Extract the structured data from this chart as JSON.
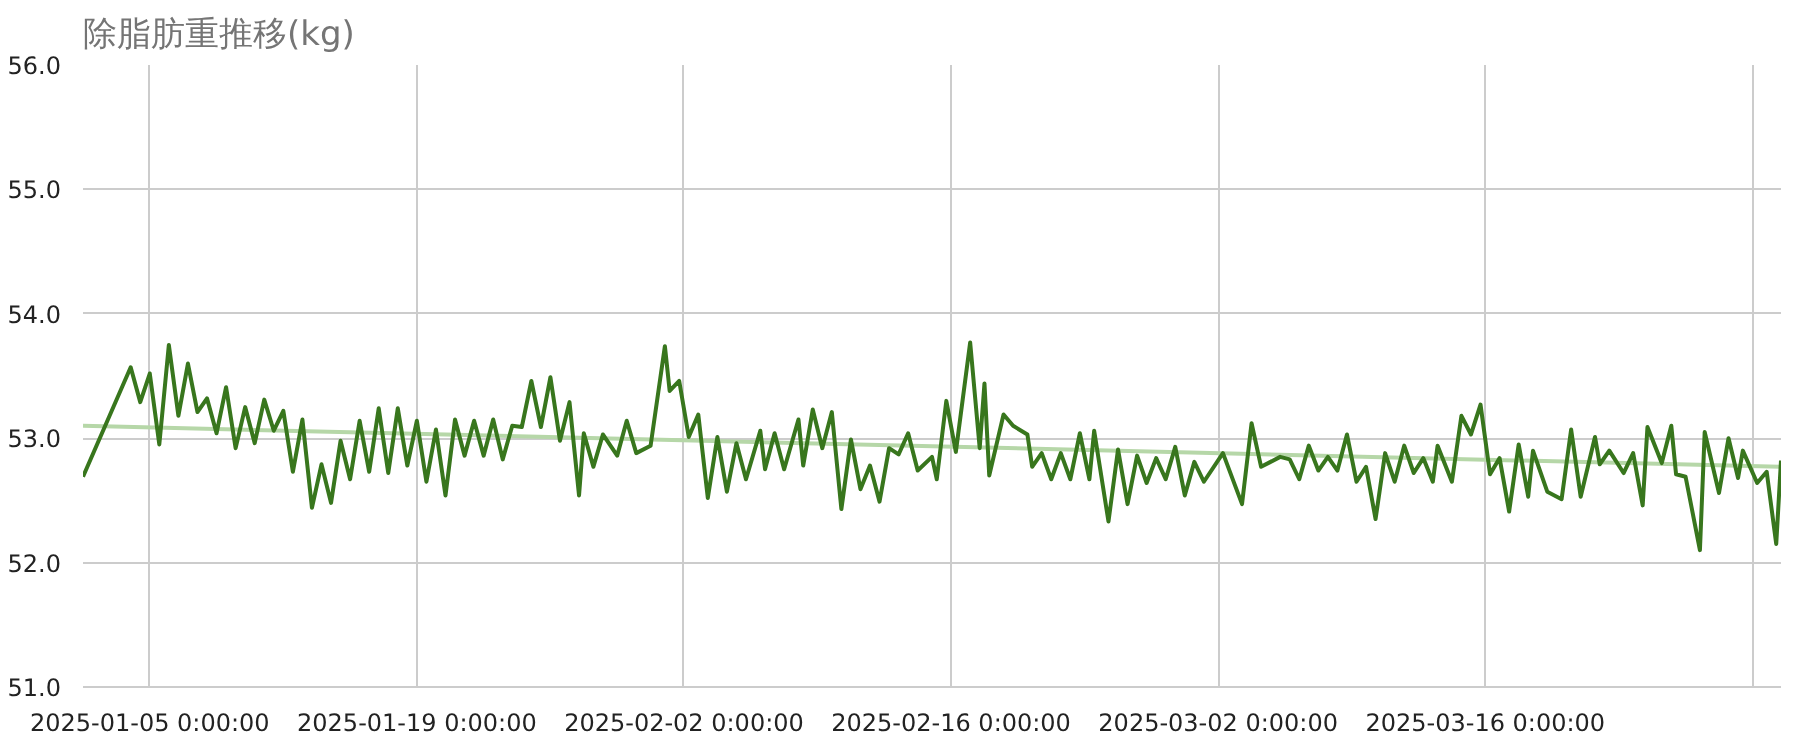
{
  "chart_data": {
    "type": "line",
    "title": "除脂肪重推移(kg)",
    "xlim": [
      "2025-01-01T12:00",
      "2025-03-31T12:00"
    ],
    "xticks": [
      {
        "value": "2025-01-05",
        "label": "2025-01-05 0:00:00"
      },
      {
        "value": "2025-01-19",
        "label": "2025-01-19 0:00:00"
      },
      {
        "value": "2025-02-02",
        "label": "2025-02-02 0:00:00"
      },
      {
        "value": "2025-02-16",
        "label": "2025-02-16 0:00:00"
      },
      {
        "value": "2025-03-02",
        "label": "2025-03-02 0:00:00"
      },
      {
        "value": "2025-03-16",
        "label": "2025-03-16 0:00:00"
      },
      {
        "value": "2025-03-30",
        "label": null
      }
    ],
    "ylim": [
      51,
      56
    ],
    "yticks": [
      {
        "value": 51,
        "label": "51.0"
      },
      {
        "value": 52,
        "label": "52.0"
      },
      {
        "value": 53,
        "label": "53.0"
      },
      {
        "value": 54,
        "label": "54.0"
      },
      {
        "value": 55,
        "label": "55.0"
      },
      {
        "value": 56,
        "label": "56.0"
      }
    ],
    "grid": true,
    "series": [
      {
        "color": "#38761d",
        "x": [
          "2025-01-01T12:00",
          "2025-01-04T00:00",
          "2025-01-04T12:00",
          "2025-01-05T00:00",
          "2025-01-05T12:00",
          "2025-01-06T00:00",
          "2025-01-06T12:00",
          "2025-01-07T00:00",
          "2025-01-07T12:00",
          "2025-01-08T00:00",
          "2025-01-08T12:00",
          "2025-01-09T00:00",
          "2025-01-09T12:00",
          "2025-01-10T00:00",
          "2025-01-10T12:00",
          "2025-01-11T00:00",
          "2025-01-11T12:00",
          "2025-01-12T00:00",
          "2025-01-12T12:00",
          "2025-01-13T00:00",
          "2025-01-13T12:00",
          "2025-01-14T00:00",
          "2025-01-14T12:00",
          "2025-01-15T00:00",
          "2025-01-15T12:00",
          "2025-01-16T00:00",
          "2025-01-16T12:00",
          "2025-01-17T00:00",
          "2025-01-17T12:00",
          "2025-01-18T00:00",
          "2025-01-18T12:00",
          "2025-01-19T00:00",
          "2025-01-19T12:00",
          "2025-01-20T00:00",
          "2025-01-20T12:00",
          "2025-01-21T00:00",
          "2025-01-21T12:00",
          "2025-01-22T00:00",
          "2025-01-22T12:00",
          "2025-01-23T00:00",
          "2025-01-23T12:00",
          "2025-01-24T00:00",
          "2025-01-24T12:00",
          "2025-01-25T00:00",
          "2025-01-25T12:00",
          "2025-01-26T00:00",
          "2025-01-26T12:00",
          "2025-01-27T00:00",
          "2025-01-27T12:00",
          "2025-01-27T18:00",
          "2025-01-28T06:00",
          "2025-01-28T18:00",
          "2025-01-29T12:00",
          "2025-01-30T00:00",
          "2025-01-30T12:00",
          "2025-01-31T06:00",
          "2025-02-01T00:00",
          "2025-02-01T06:00",
          "2025-02-01T18:00",
          "2025-02-02T06:00",
          "2025-02-02T18:00",
          "2025-02-03T06:00",
          "2025-02-03T18:00",
          "2025-02-04T06:00",
          "2025-02-04T18:00",
          "2025-02-05T06:00",
          "2025-02-06T00:00",
          "2025-02-06T06:00",
          "2025-02-06T18:00",
          "2025-02-07T06:00",
          "2025-02-08T00:00",
          "2025-02-08T06:00",
          "2025-02-08T18:00",
          "2025-02-09T06:00",
          "2025-02-09T18:00",
          "2025-02-10T06:00",
          "2025-02-10T18:00",
          "2025-02-11T06:00",
          "2025-02-11T18:00",
          "2025-02-12T06:00",
          "2025-02-12T18:00",
          "2025-02-13T06:00",
          "2025-02-13T18:00",
          "2025-02-14T06:00",
          "2025-02-15T00:00",
          "2025-02-15T06:00",
          "2025-02-15T18:00",
          "2025-02-16T06:00",
          "2025-02-17T00:00",
          "2025-02-17T12:00",
          "2025-02-17T18:00",
          "2025-02-18T00:00",
          "2025-02-18T18:00",
          "2025-02-19T06:00",
          "2025-02-20T00:00",
          "2025-02-20T06:00",
          "2025-02-20T18:00",
          "2025-02-21T06:00",
          "2025-02-21T18:00",
          "2025-02-22T06:00",
          "2025-02-22T18:00",
          "2025-02-23T06:00",
          "2025-02-23T12:00",
          "2025-02-24T06:00",
          "2025-02-24T18:00",
          "2025-02-25T06:00",
          "2025-02-25T18:00",
          "2025-02-26T06:00",
          "2025-02-26T18:00",
          "2025-02-27T06:00",
          "2025-02-27T18:00",
          "2025-02-28T06:00",
          "2025-02-28T18:00",
          "2025-03-01T06:00",
          "2025-03-02T06:00",
          "2025-03-03T06:00",
          "2025-03-03T18:00",
          "2025-03-04T06:00",
          "2025-03-05T06:00",
          "2025-03-05T18:00",
          "2025-03-06T06:00",
          "2025-03-06T18:00",
          "2025-03-07T06:00",
          "2025-03-07T18:00",
          "2025-03-08T06:00",
          "2025-03-08T18:00",
          "2025-03-09T06:00",
          "2025-03-09T18:00",
          "2025-03-10T06:00",
          "2025-03-10T18:00",
          "2025-03-11T06:00",
          "2025-03-11T18:00",
          "2025-03-12T06:00",
          "2025-03-12T18:00",
          "2025-03-13T06:00",
          "2025-03-13T12:00",
          "2025-03-14T06:00",
          "2025-03-14T18:00",
          "2025-03-15T06:00",
          "2025-03-15T18:00",
          "2025-03-16T06:00",
          "2025-03-16T18:00",
          "2025-03-17T06:00",
          "2025-03-17T18:00",
          "2025-03-18T06:00",
          "2025-03-18T12:00",
          "2025-03-19T06:00",
          "2025-03-20T00:00",
          "2025-03-20T12:00",
          "2025-03-21T00:00",
          "2025-03-21T18:00",
          "2025-03-22T00:00",
          "2025-03-22T12:00",
          "2025-03-23T06:00",
          "2025-03-23T18:00",
          "2025-03-24T06:00",
          "2025-03-24T12:00",
          "2025-03-25T06:00",
          "2025-03-25T18:00",
          "2025-03-26T00:00",
          "2025-03-26T12:00",
          "2025-03-27T06:00",
          "2025-03-27T12:00",
          "2025-03-28T06:00",
          "2025-03-28T18:00",
          "2025-03-29T06:00",
          "2025-03-29T12:00",
          "2025-03-30T06:00",
          "2025-03-30T18:00",
          "2025-03-31T06:00",
          "2025-03-31T12:00"
        ],
        "values": [
          52.69,
          53.57,
          53.29,
          53.52,
          52.95,
          53.75,
          53.18,
          53.6,
          53.21,
          53.32,
          53.04,
          53.41,
          52.92,
          53.25,
          52.96,
          53.31,
          53.06,
          53.22,
          52.73,
          53.15,
          52.44,
          52.79,
          52.48,
          52.98,
          52.67,
          53.14,
          52.73,
          53.24,
          52.72,
          53.24,
          52.78,
          53.14,
          52.65,
          53.07,
          52.54,
          53.15,
          52.86,
          53.14,
          52.86,
          53.15,
          52.83,
          53.1,
          53.09,
          53.46,
          53.09,
          53.49,
          52.98,
          53.29,
          52.54,
          53.04,
          52.77,
          53.03,
          52.86,
          53.14,
          52.88,
          52.94,
          53.74,
          53.38,
          53.46,
          53.01,
          53.19,
          52.52,
          53.01,
          52.57,
          52.96,
          52.67,
          53.06,
          52.75,
          53.04,
          52.75,
          53.15,
          52.78,
          53.23,
          52.92,
          53.21,
          52.43,
          52.99,
          52.59,
          52.78,
          52.49,
          52.92,
          52.87,
          53.04,
          52.74,
          52.85,
          52.67,
          53.3,
          52.89,
          53.77,
          52.92,
          53.44,
          52.7,
          53.19,
          53.1,
          53.03,
          52.77,
          52.88,
          52.67,
          52.88,
          52.67,
          53.04,
          52.67,
          53.06,
          52.33,
          52.91,
          52.47,
          52.86,
          52.64,
          52.84,
          52.67,
          52.93,
          52.54,
          52.81,
          52.65,
          52.88,
          52.47,
          53.12,
          52.77,
          52.85,
          52.83,
          52.67,
          52.94,
          52.74,
          52.85,
          52.74,
          53.03,
          52.65,
          52.77,
          52.35,
          52.88,
          52.65,
          52.94,
          52.72,
          52.84,
          52.65,
          52.94,
          52.65,
          53.18,
          53.03,
          53.27,
          52.71,
          52.84,
          52.41,
          52.95,
          52.53,
          52.9,
          52.57,
          52.51,
          53.07,
          52.53,
          53.01,
          52.79,
          52.9,
          52.72,
          52.88,
          52.46,
          53.09,
          52.8,
          53.1,
          52.71,
          52.69,
          52.1,
          53.05,
          52.56,
          53.0,
          52.68,
          52.9,
          52.64,
          52.73,
          52.15,
          52.82
        ]
      },
      {
        "type": "line",
        "color": "#b6d7a8",
        "x": [
          "2025-01-01T12:00",
          "2025-03-31T12:00"
        ],
        "values": [
          53.1,
          52.77
        ]
      }
    ]
  }
}
